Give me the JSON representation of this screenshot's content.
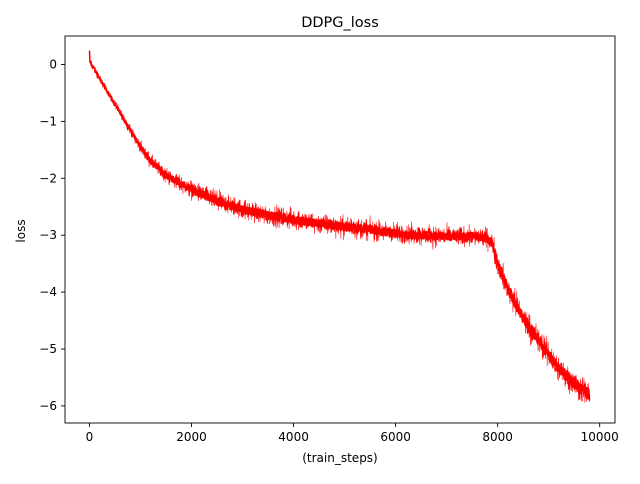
{
  "chart_data": {
    "type": "line",
    "title": "DDPG_loss",
    "xlabel": "(train_steps)",
    "ylabel": "loss",
    "xlim": [
      -480,
      10300
    ],
    "ylim": [
      -6.3,
      0.5
    ],
    "x_ticks": [
      0,
      2000,
      4000,
      6000,
      8000,
      10000
    ],
    "x_tick_labels": [
      "0",
      "2000",
      "4000",
      "6000",
      "8000",
      "10000"
    ],
    "y_ticks": [
      0,
      -1,
      -2,
      -3,
      -4,
      -5,
      -6
    ],
    "y_tick_labels": [
      "0",
      "−1",
      "−2",
      "−3",
      "−4",
      "−5",
      "−6"
    ],
    "grid": false,
    "legend": "none",
    "series": [
      {
        "color": "#ff0000",
        "x": [
          0,
          10,
          200,
          500,
          800,
          1000,
          1200,
          1500,
          1800,
          2000,
          2500,
          3000,
          3500,
          4000,
          4500,
          5000,
          5500,
          6000,
          6500,
          7000,
          7500,
          7800,
          7900,
          8000,
          8200,
          8500,
          8800,
          9000,
          9200,
          9500,
          9800
        ],
        "y": [
          0.2,
          0.05,
          -0.25,
          -0.7,
          -1.15,
          -1.45,
          -1.7,
          -1.95,
          -2.1,
          -2.2,
          -2.4,
          -2.55,
          -2.65,
          -2.72,
          -2.8,
          -2.85,
          -2.9,
          -2.97,
          -3.0,
          -3.02,
          -3.02,
          -3.05,
          -3.15,
          -3.5,
          -3.95,
          -4.45,
          -4.85,
          -5.1,
          -5.35,
          -5.6,
          -5.8
        ],
        "spread": [
          0.15,
          0.12,
          0.1,
          0.1,
          0.12,
          0.15,
          0.18,
          0.2,
          0.22,
          0.24,
          0.26,
          0.26,
          0.26,
          0.27,
          0.27,
          0.27,
          0.27,
          0.27,
          0.27,
          0.26,
          0.26,
          0.26,
          0.28,
          0.3,
          0.32,
          0.34,
          0.35,
          0.35,
          0.36,
          0.36,
          0.36
        ]
      }
    ]
  }
}
